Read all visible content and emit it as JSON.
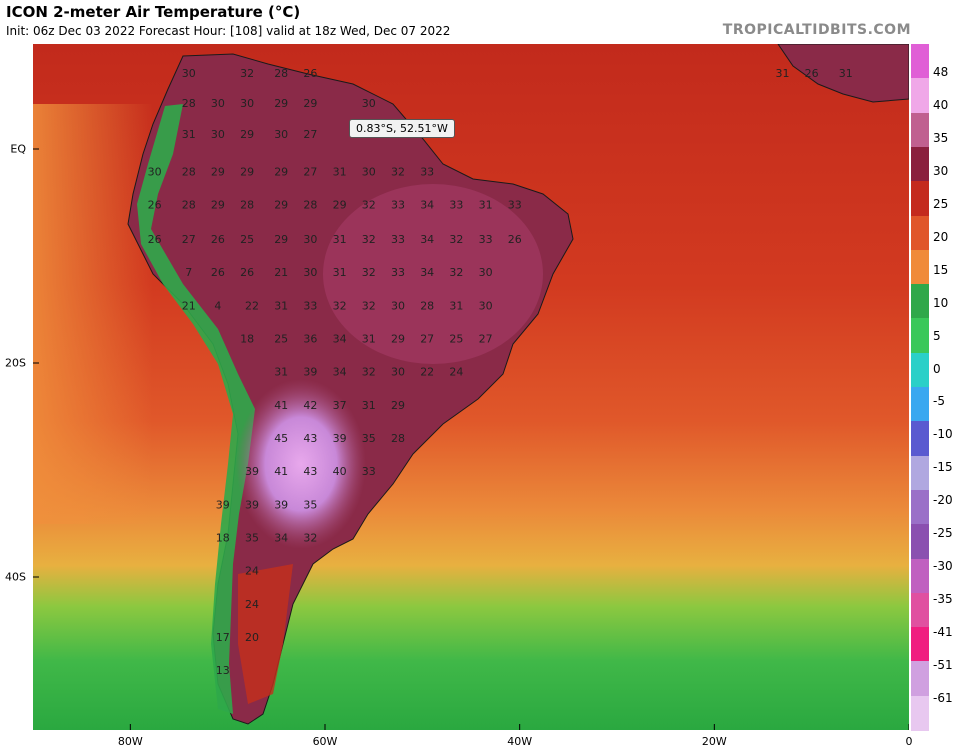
{
  "header": {
    "title": "ICON 2-meter Air Temperature (°C)",
    "subtitle": "Init: 06z Dec 03 2022   Forecast Hour: [108]   valid at 18z Wed, Dec 07 2022",
    "site": "TROPICALTIDBITS.COM"
  },
  "tooltip": {
    "text": "0.83°S, 52.51°W"
  },
  "axes": {
    "lat_labels": [
      {
        "label": "EQ",
        "lat": 0
      },
      {
        "label": "20S",
        "lat": -20
      },
      {
        "label": "40S",
        "lat": -40
      }
    ],
    "lon_labels": [
      {
        "label": "80W",
        "lon": -80
      },
      {
        "label": "60W",
        "lon": -60
      },
      {
        "label": "40W",
        "lon": -40
      },
      {
        "label": "20W",
        "lon": -20
      },
      {
        "label": "0",
        "lon": 0
      }
    ]
  },
  "colorbar": {
    "labels": [
      "48",
      "40",
      "35",
      "30",
      "25",
      "20",
      "15",
      "10",
      "5",
      "0",
      "-5",
      "-10",
      "-15",
      "-20",
      "-25",
      "-30",
      "-35",
      "-41",
      "-51",
      "-61"
    ],
    "colors": [
      "#e05fd6",
      "#f0a8e8",
      "#c06090",
      "#8a1f3e",
      "#c42a1e",
      "#e0562a",
      "#f08a3a",
      "#2fa84a",
      "#3ac85a",
      "#2ad0c8",
      "#3aa8f0",
      "#5a5ad0",
      "#b0a8e0",
      "#9a70c8",
      "#8a50b0",
      "#c060c0",
      "#e050a0",
      "#f01e80",
      "#d0a0e0",
      "#e8c8f0"
    ]
  },
  "temperature_labels": [
    {
      "v": "30",
      "lon": -74,
      "lat": 7
    },
    {
      "v": "32",
      "lon": -68,
      "lat": 7
    },
    {
      "v": "28",
      "lon": -64.5,
      "lat": 7
    },
    {
      "v": "26",
      "lon": -61.5,
      "lat": 7
    },
    {
      "v": "28",
      "lon": -74,
      "lat": 4.2
    },
    {
      "v": "30",
      "lon": -71,
      "lat": 4.2
    },
    {
      "v": "30",
      "lon": -68,
      "lat": 4.2
    },
    {
      "v": "29",
      "lon": -64.5,
      "lat": 4.2
    },
    {
      "v": "29",
      "lon": -61.5,
      "lat": 4.2
    },
    {
      "v": "30",
      "lon": -55.5,
      "lat": 4.2
    },
    {
      "v": "31",
      "lon": -74,
      "lat": 1.3
    },
    {
      "v": "30",
      "lon": -71,
      "lat": 1.3
    },
    {
      "v": "29",
      "lon": -68,
      "lat": 1.3
    },
    {
      "v": "30",
      "lon": -64.5,
      "lat": 1.3
    },
    {
      "v": "27",
      "lon": -61.5,
      "lat": 1.3
    },
    {
      "v": "30",
      "lon": -77.5,
      "lat": -2.2
    },
    {
      "v": "28",
      "lon": -74,
      "lat": -2.2
    },
    {
      "v": "29",
      "lon": -71,
      "lat": -2.2
    },
    {
      "v": "29",
      "lon": -68,
      "lat": -2.2
    },
    {
      "v": "29",
      "lon": -64.5,
      "lat": -2.2
    },
    {
      "v": "27",
      "lon": -61.5,
      "lat": -2.2
    },
    {
      "v": "31",
      "lon": -58.5,
      "lat": -2.2
    },
    {
      "v": "30",
      "lon": -55.5,
      "lat": -2.2
    },
    {
      "v": "32",
      "lon": -52.5,
      "lat": -2.2
    },
    {
      "v": "33",
      "lon": -49.5,
      "lat": -2.2
    },
    {
      "v": "26",
      "lon": -77.5,
      "lat": -5.3
    },
    {
      "v": "28",
      "lon": -74,
      "lat": -5.3
    },
    {
      "v": "29",
      "lon": -71,
      "lat": -5.3
    },
    {
      "v": "28",
      "lon": -68,
      "lat": -5.3
    },
    {
      "v": "29",
      "lon": -64.5,
      "lat": -5.3
    },
    {
      "v": "28",
      "lon": -61.5,
      "lat": -5.3
    },
    {
      "v": "29",
      "lon": -58.5,
      "lat": -5.3
    },
    {
      "v": "32",
      "lon": -55.5,
      "lat": -5.3
    },
    {
      "v": "33",
      "lon": -52.5,
      "lat": -5.3
    },
    {
      "v": "34",
      "lon": -49.5,
      "lat": -5.3
    },
    {
      "v": "33",
      "lon": -46.5,
      "lat": -5.3
    },
    {
      "v": "31",
      "lon": -43.5,
      "lat": -5.3
    },
    {
      "v": "33",
      "lon": -40.5,
      "lat": -5.3
    },
    {
      "v": "26",
      "lon": -77.5,
      "lat": -8.5
    },
    {
      "v": "27",
      "lon": -74,
      "lat": -8.5
    },
    {
      "v": "26",
      "lon": -71,
      "lat": -8.5
    },
    {
      "v": "25",
      "lon": -68,
      "lat": -8.5
    },
    {
      "v": "29",
      "lon": -64.5,
      "lat": -8.5
    },
    {
      "v": "30",
      "lon": -61.5,
      "lat": -8.5
    },
    {
      "v": "31",
      "lon": -58.5,
      "lat": -8.5
    },
    {
      "v": "32",
      "lon": -55.5,
      "lat": -8.5
    },
    {
      "v": "33",
      "lon": -52.5,
      "lat": -8.5
    },
    {
      "v": "34",
      "lon": -49.5,
      "lat": -8.5
    },
    {
      "v": "32",
      "lon": -46.5,
      "lat": -8.5
    },
    {
      "v": "33",
      "lon": -43.5,
      "lat": -8.5
    },
    {
      "v": "26",
      "lon": -40.5,
      "lat": -8.5
    },
    {
      "v": "7",
      "lon": -74,
      "lat": -11.6
    },
    {
      "v": "26",
      "lon": -71,
      "lat": -11.6
    },
    {
      "v": "26",
      "lon": -68,
      "lat": -11.6
    },
    {
      "v": "21",
      "lon": -64.5,
      "lat": -11.6
    },
    {
      "v": "30",
      "lon": -61.5,
      "lat": -11.6
    },
    {
      "v": "31",
      "lon": -58.5,
      "lat": -11.6
    },
    {
      "v": "32",
      "lon": -55.5,
      "lat": -11.6
    },
    {
      "v": "33",
      "lon": -52.5,
      "lat": -11.6
    },
    {
      "v": "34",
      "lon": -49.5,
      "lat": -11.6
    },
    {
      "v": "32",
      "lon": -46.5,
      "lat": -11.6
    },
    {
      "v": "30",
      "lon": -43.5,
      "lat": -11.6
    },
    {
      "v": "21",
      "lon": -74,
      "lat": -14.7
    },
    {
      "v": "4",
      "lon": -71,
      "lat": -14.7
    },
    {
      "v": "22",
      "lon": -67.5,
      "lat": -14.7
    },
    {
      "v": "31",
      "lon": -64.5,
      "lat": -14.7
    },
    {
      "v": "33",
      "lon": -61.5,
      "lat": -14.7
    },
    {
      "v": "32",
      "lon": -58.5,
      "lat": -14.7
    },
    {
      "v": "32",
      "lon": -55.5,
      "lat": -14.7
    },
    {
      "v": "30",
      "lon": -52.5,
      "lat": -14.7
    },
    {
      "v": "28",
      "lon": -49.5,
      "lat": -14.7
    },
    {
      "v": "31",
      "lon": -46.5,
      "lat": -14.7
    },
    {
      "v": "30",
      "lon": -43.5,
      "lat": -14.7
    },
    {
      "v": "18",
      "lon": -68,
      "lat": -17.8
    },
    {
      "v": "25",
      "lon": -64.5,
      "lat": -17.8
    },
    {
      "v": "36",
      "lon": -61.5,
      "lat": -17.8
    },
    {
      "v": "34",
      "lon": -58.5,
      "lat": -17.8
    },
    {
      "v": "31",
      "lon": -55.5,
      "lat": -17.8
    },
    {
      "v": "29",
      "lon": -52.5,
      "lat": -17.8
    },
    {
      "v": "27",
      "lon": -49.5,
      "lat": -17.8
    },
    {
      "v": "25",
      "lon": -46.5,
      "lat": -17.8
    },
    {
      "v": "27",
      "lon": -43.5,
      "lat": -17.8
    },
    {
      "v": "31",
      "lon": -64.5,
      "lat": -20.9
    },
    {
      "v": "39",
      "lon": -61.5,
      "lat": -20.9
    },
    {
      "v": "34",
      "lon": -58.5,
      "lat": -20.9
    },
    {
      "v": "32",
      "lon": -55.5,
      "lat": -20.9
    },
    {
      "v": "30",
      "lon": -52.5,
      "lat": -20.9
    },
    {
      "v": "22",
      "lon": -49.5,
      "lat": -20.9
    },
    {
      "v": "24",
      "lon": -46.5,
      "lat": -20.9
    },
    {
      "v": "41",
      "lon": -64.5,
      "lat": -24
    },
    {
      "v": "42",
      "lon": -61.5,
      "lat": -24
    },
    {
      "v": "37",
      "lon": -58.5,
      "lat": -24
    },
    {
      "v": "31",
      "lon": -55.5,
      "lat": -24
    },
    {
      "v": "29",
      "lon": -52.5,
      "lat": -24
    },
    {
      "v": "45",
      "lon": -64.5,
      "lat": -27.1
    },
    {
      "v": "43",
      "lon": -61.5,
      "lat": -27.1
    },
    {
      "v": "39",
      "lon": -58.5,
      "lat": -27.1
    },
    {
      "v": "35",
      "lon": -55.5,
      "lat": -27.1
    },
    {
      "v": "28",
      "lon": -52.5,
      "lat": -27.1
    },
    {
      "v": "39",
      "lon": -67.5,
      "lat": -30.2
    },
    {
      "v": "41",
      "lon": -64.5,
      "lat": -30.2
    },
    {
      "v": "43",
      "lon": -61.5,
      "lat": -30.2
    },
    {
      "v": "40",
      "lon": -58.5,
      "lat": -30.2
    },
    {
      "v": "33",
      "lon": -55.5,
      "lat": -30.2
    },
    {
      "v": "39",
      "lon": -70.5,
      "lat": -33.3
    },
    {
      "v": "39",
      "lon": -67.5,
      "lat": -33.3
    },
    {
      "v": "39",
      "lon": -64.5,
      "lat": -33.3
    },
    {
      "v": "35",
      "lon": -61.5,
      "lat": -33.3
    },
    {
      "v": "18",
      "lon": -70.5,
      "lat": -36.4
    },
    {
      "v": "35",
      "lon": -67.5,
      "lat": -36.4
    },
    {
      "v": "34",
      "lon": -64.5,
      "lat": -36.4
    },
    {
      "v": "32",
      "lon": -61.5,
      "lat": -36.4
    },
    {
      "v": "24",
      "lon": -67.5,
      "lat": -39.5
    },
    {
      "v": "24",
      "lon": -67.5,
      "lat": -42.6
    },
    {
      "v": "17",
      "lon": -70.5,
      "lat": -45.7
    },
    {
      "v": "20",
      "lon": -67.5,
      "lat": -45.7
    },
    {
      "v": "13",
      "lon": -70.5,
      "lat": -48.8
    },
    {
      "v": "31",
      "lon": -13,
      "lat": 7
    },
    {
      "v": "26",
      "lon": -10,
      "lat": 7
    },
    {
      "v": "31",
      "lon": -6.5,
      "lat": 7
    }
  ]
}
